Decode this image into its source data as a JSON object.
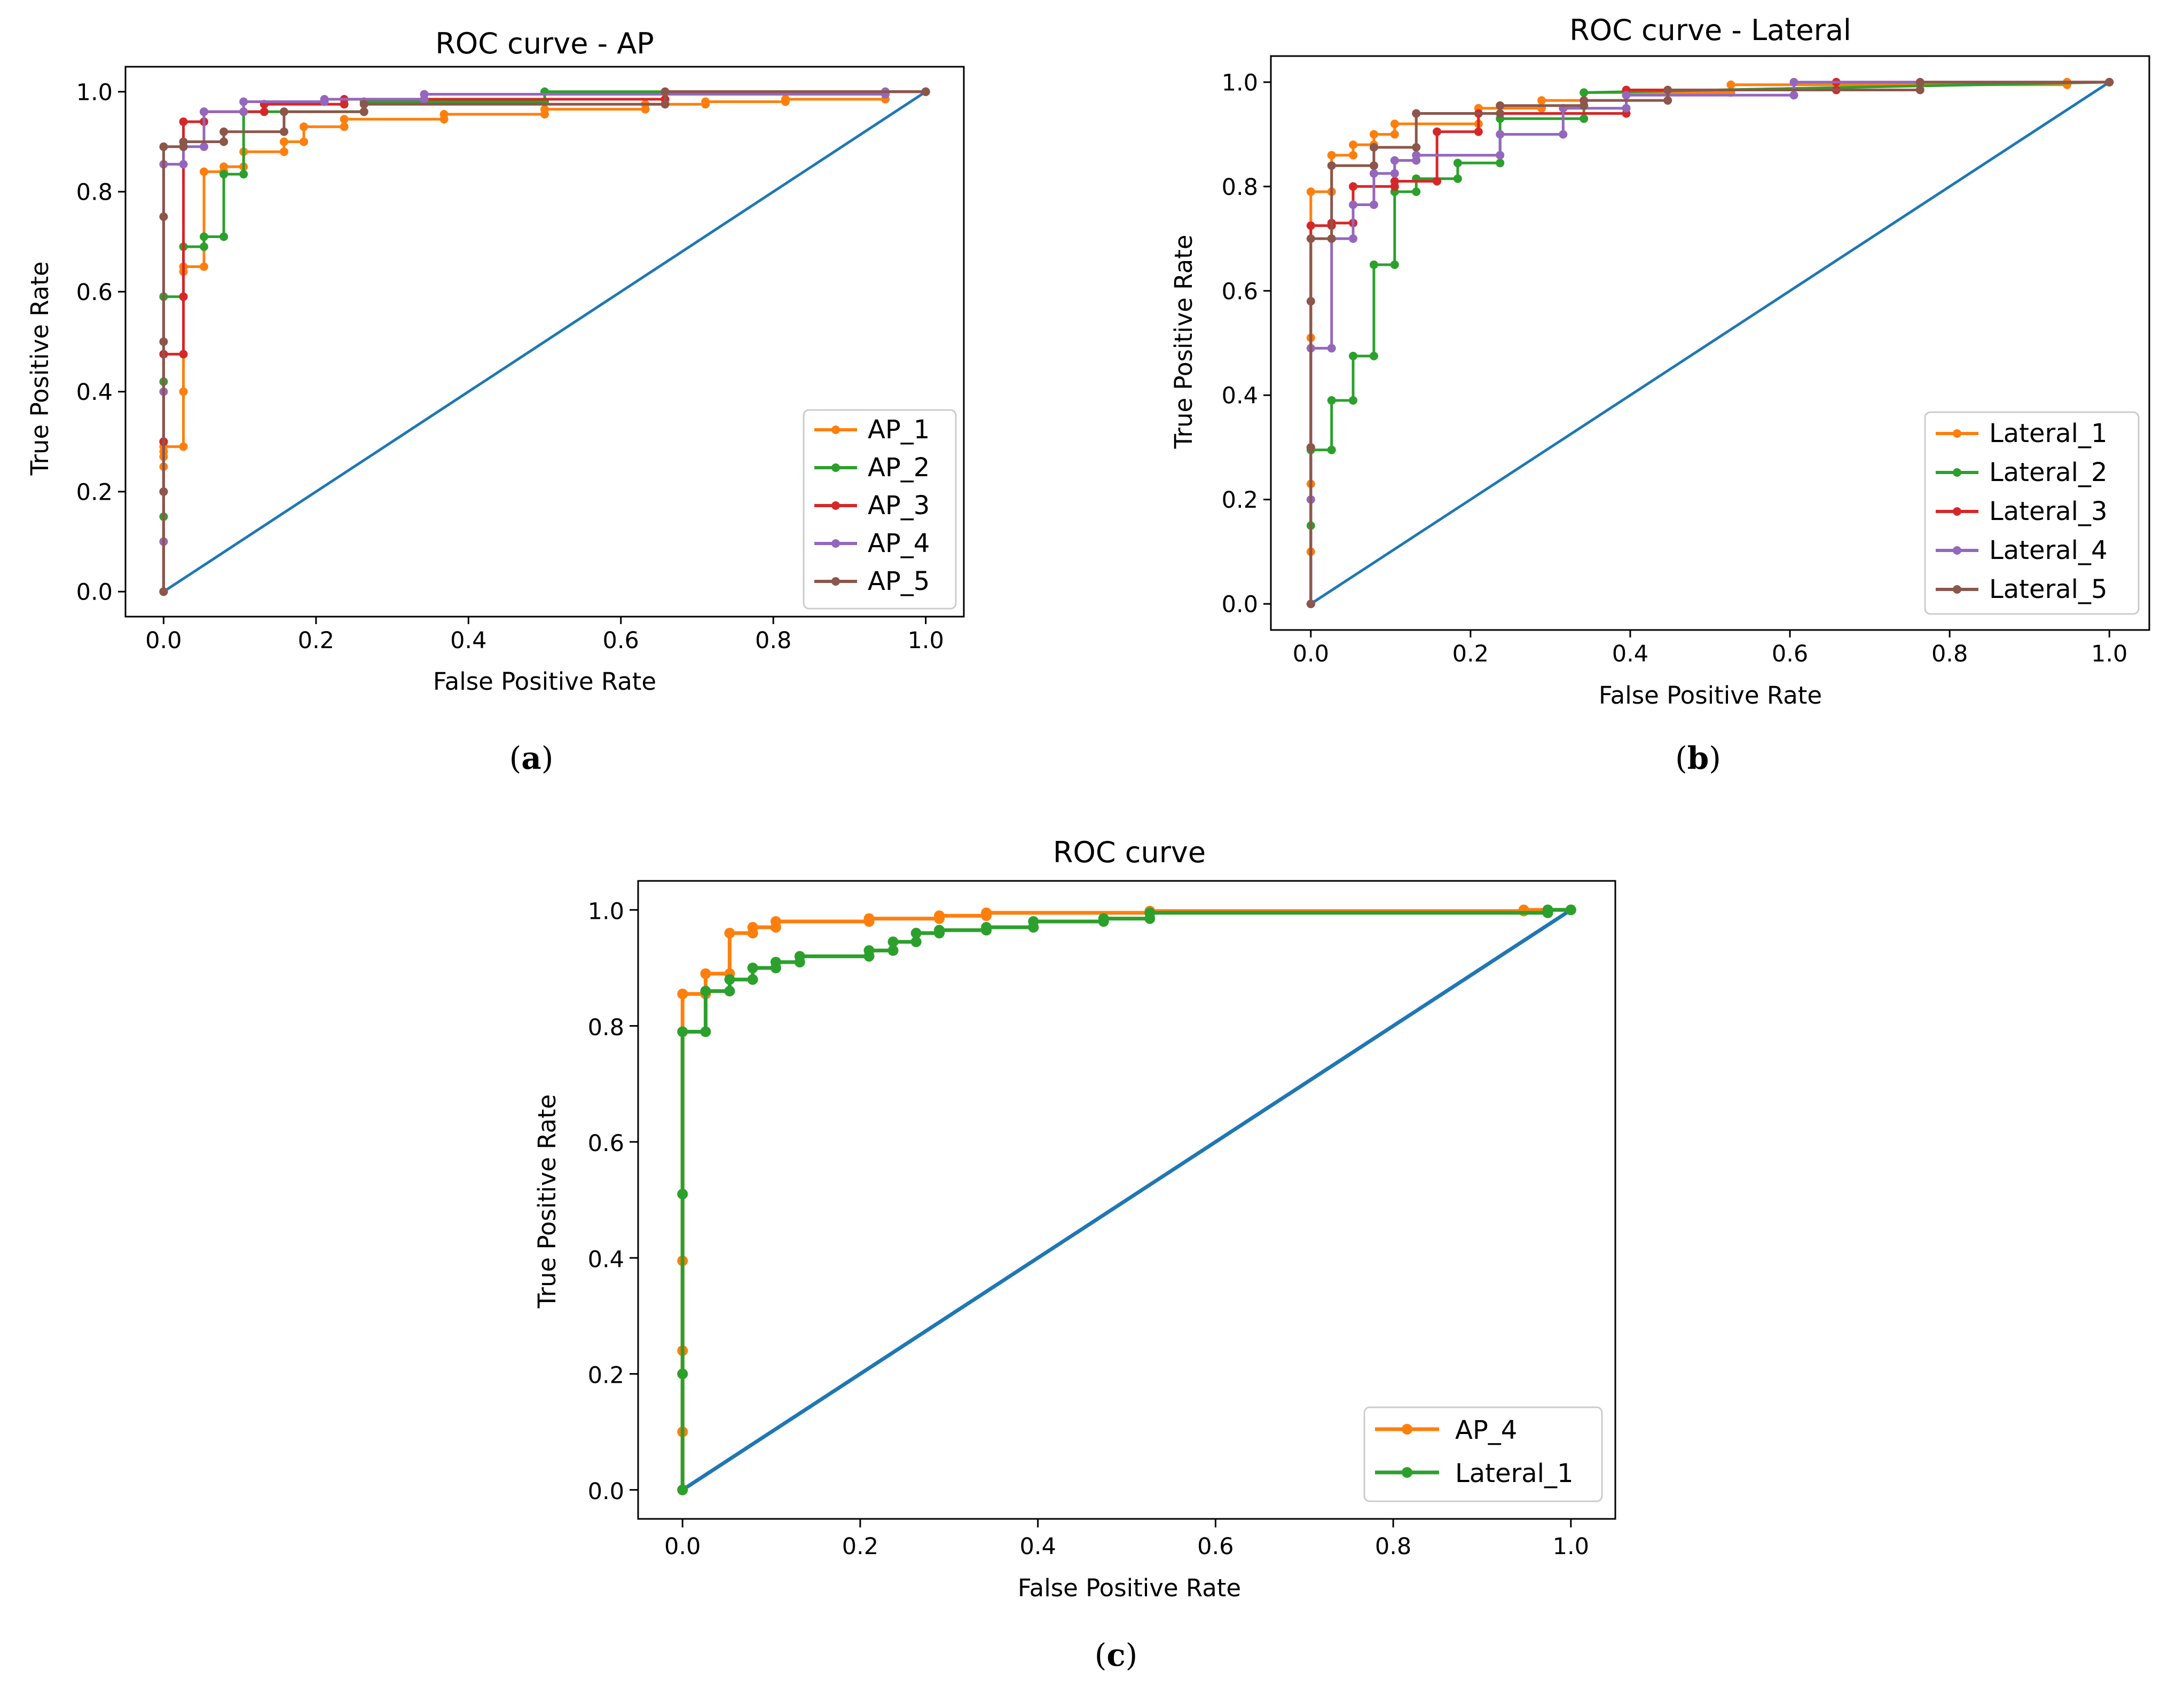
{
  "chart_data": [
    {
      "type": "line",
      "title": "ROC curve - AP",
      "xlabel": "False Positive Rate",
      "ylabel": "True Positive Rate",
      "xlim": [
        -0.05,
        1.05
      ],
      "ylim": [
        -0.05,
        1.05
      ],
      "xticks": [
        0.0,
        0.2,
        0.4,
        0.6,
        0.8,
        1.0
      ],
      "yticks": [
        0.0,
        0.2,
        0.4,
        0.6,
        0.8,
        1.0
      ],
      "tick_labels": [
        "0.0",
        "0.2",
        "0.4",
        "0.6",
        "0.8",
        "1.0"
      ],
      "caption": "a",
      "legend": "bottom-right",
      "diagonal": {
        "color": "#1f77b4",
        "x": [
          0,
          1
        ],
        "y": [
          0,
          1
        ]
      },
      "series": [
        {
          "name": "AP_1",
          "color": "#ff7f0e",
          "x": [
            0,
            0,
            0,
            0,
            0,
            0,
            0,
            0,
            0.026,
            0.026,
            0.026,
            0.026,
            0.053,
            0.053,
            0.079,
            0.079,
            0.105,
            0.105,
            0.158,
            0.158,
            0.184,
            0.184,
            0.237,
            0.237,
            0.368,
            0.368,
            0.5,
            0.5,
            0.632,
            0.632,
            0.711,
            0.711,
            0.816,
            0.816,
            0.947,
            0.947,
            1.0
          ],
          "y": [
            0,
            0.1,
            0.2,
            0.25,
            0.27,
            0.28,
            0.3,
            0.29,
            0.29,
            0.4,
            0.64,
            0.65,
            0.65,
            0.84,
            0.84,
            0.85,
            0.85,
            0.88,
            0.88,
            0.9,
            0.9,
            0.93,
            0.93,
            0.945,
            0.945,
            0.955,
            0.955,
            0.965,
            0.965,
            0.975,
            0.975,
            0.98,
            0.98,
            0.985,
            0.985,
            1.0,
            1.0
          ]
        },
        {
          "name": "AP_2",
          "color": "#2ca02c",
          "x": [
            0,
            0,
            0,
            0,
            0,
            0,
            0.026,
            0.026,
            0.053,
            0.053,
            0.079,
            0.079,
            0.105,
            0.105,
            0.263,
            0.263,
            0.5,
            0.5,
            1.0
          ],
          "y": [
            0,
            0.15,
            0.3,
            0.42,
            0.59,
            0.59,
            0.59,
            0.69,
            0.69,
            0.71,
            0.71,
            0.835,
            0.835,
            0.96,
            0.96,
            0.98,
            0.98,
            1.0,
            1.0
          ]
        },
        {
          "name": "AP_3",
          "color": "#d62728",
          "x": [
            0,
            0,
            0,
            0,
            0.026,
            0.026,
            0.026,
            0.053,
            0.053,
            0.132,
            0.132,
            0.237,
            0.237,
            0.658,
            0.658,
            1.0
          ],
          "y": [
            0,
            0.3,
            0.475,
            0.475,
            0.475,
            0.59,
            0.94,
            0.94,
            0.96,
            0.96,
            0.975,
            0.975,
            0.985,
            0.985,
            1.0,
            1.0
          ]
        },
        {
          "name": "AP_4",
          "color": "#9467bd",
          "x": [
            0,
            0,
            0,
            0,
            0.026,
            0.026,
            0.053,
            0.053,
            0.105,
            0.105,
            0.211,
            0.211,
            0.342,
            0.342,
            0.947,
            0.947,
            1.0
          ],
          "y": [
            0,
            0.1,
            0.4,
            0.855,
            0.855,
            0.89,
            0.89,
            0.96,
            0.96,
            0.98,
            0.98,
            0.985,
            0.985,
            0.995,
            0.995,
            1.0,
            1.0
          ]
        },
        {
          "name": "AP_5",
          "color": "#8c564b",
          "x": [
            0,
            0,
            0,
            0,
            0,
            0.026,
            0.026,
            0.079,
            0.079,
            0.158,
            0.158,
            0.263,
            0.263,
            0.658,
            0.658,
            1.0
          ],
          "y": [
            0,
            0.2,
            0.5,
            0.75,
            0.89,
            0.89,
            0.9,
            0.9,
            0.92,
            0.92,
            0.96,
            0.96,
            0.975,
            0.975,
            1.0,
            1.0
          ]
        }
      ]
    },
    {
      "type": "line",
      "title": "ROC curve - Lateral",
      "xlabel": "False Positive Rate",
      "ylabel": "True Positive Rate",
      "xlim": [
        -0.05,
        1.05
      ],
      "ylim": [
        -0.05,
        1.05
      ],
      "xticks": [
        0.0,
        0.2,
        0.4,
        0.6,
        0.8,
        1.0
      ],
      "yticks": [
        0.0,
        0.2,
        0.4,
        0.6,
        0.8,
        1.0
      ],
      "tick_labels": [
        "0.0",
        "0.2",
        "0.4",
        "0.6",
        "0.8",
        "1.0"
      ],
      "caption": "b",
      "legend": "bottom-right",
      "diagonal": {
        "color": "#1f77b4",
        "x": [
          0,
          1
        ],
        "y": [
          0,
          1
        ]
      },
      "series": [
        {
          "name": "Lateral_1",
          "color": "#ff7f0e",
          "x": [
            0,
            0,
            0,
            0,
            0,
            0.026,
            0.026,
            0.053,
            0.053,
            0.079,
            0.079,
            0.105,
            0.105,
            0.21,
            0.21,
            0.289,
            0.289,
            0.342,
            0.342,
            0.526,
            0.526,
            0.947,
            0.947,
            1.0
          ],
          "y": [
            0,
            0.1,
            0.23,
            0.51,
            0.79,
            0.79,
            0.86,
            0.86,
            0.88,
            0.88,
            0.9,
            0.9,
            0.92,
            0.92,
            0.95,
            0.95,
            0.965,
            0.965,
            0.98,
            0.98,
            0.995,
            0.995,
            1.0,
            1.0
          ]
        },
        {
          "name": "Lateral_2",
          "color": "#2ca02c",
          "x": [
            0,
            0,
            0,
            0.026,
            0.026,
            0.053,
            0.053,
            0.079,
            0.079,
            0.105,
            0.105,
            0.132,
            0.132,
            0.184,
            0.184,
            0.237,
            0.237,
            0.342,
            0.342,
            1.0
          ],
          "y": [
            0,
            0.15,
            0.295,
            0.295,
            0.39,
            0.39,
            0.475,
            0.475,
            0.65,
            0.65,
            0.79,
            0.79,
            0.815,
            0.815,
            0.845,
            0.845,
            0.93,
            0.93,
            0.98,
            1.0
          ]
        },
        {
          "name": "Lateral_3",
          "color": "#d62728",
          "x": [
            0,
            0,
            0,
            0.026,
            0.026,
            0.053,
            0.053,
            0.105,
            0.105,
            0.158,
            0.158,
            0.21,
            0.21,
            0.395,
            0.395,
            0.658,
            0.658,
            1.0
          ],
          "y": [
            0,
            0.3,
            0.725,
            0.725,
            0.73,
            0.73,
            0.8,
            0.8,
            0.81,
            0.81,
            0.905,
            0.905,
            0.94,
            0.94,
            0.985,
            0.985,
            1.0,
            1.0
          ]
        },
        {
          "name": "Lateral_4",
          "color": "#9467bd",
          "x": [
            0,
            0,
            0,
            0.026,
            0.026,
            0.053,
            0.053,
            0.079,
            0.079,
            0.105,
            0.105,
            0.132,
            0.132,
            0.237,
            0.237,
            0.316,
            0.316,
            0.395,
            0.395,
            0.605,
            0.605,
            1.0
          ],
          "y": [
            0,
            0.2,
            0.49,
            0.49,
            0.7,
            0.7,
            0.765,
            0.765,
            0.825,
            0.825,
            0.85,
            0.85,
            0.86,
            0.86,
            0.9,
            0.9,
            0.95,
            0.95,
            0.975,
            0.975,
            1.0,
            1.0
          ]
        },
        {
          "name": "Lateral_5",
          "color": "#8c564b",
          "x": [
            0,
            0,
            0,
            0,
            0.026,
            0.026,
            0.079,
            0.079,
            0.132,
            0.132,
            0.237,
            0.237,
            0.342,
            0.342,
            0.447,
            0.447,
            0.763,
            0.763,
            1.0
          ],
          "y": [
            0,
            0.3,
            0.58,
            0.7,
            0.7,
            0.84,
            0.84,
            0.875,
            0.875,
            0.94,
            0.94,
            0.955,
            0.955,
            0.965,
            0.965,
            0.985,
            0.985,
            1.0,
            1.0
          ]
        }
      ]
    },
    {
      "type": "line",
      "title": "ROC curve",
      "xlabel": "False Positive Rate",
      "ylabel": "True Positive Rate",
      "xlim": [
        -0.05,
        1.05
      ],
      "ylim": [
        -0.05,
        1.05
      ],
      "xticks": [
        0.0,
        0.2,
        0.4,
        0.6,
        0.8,
        1.0
      ],
      "yticks": [
        0.0,
        0.2,
        0.4,
        0.6,
        0.8,
        1.0
      ],
      "tick_labels": [
        "0.0",
        "0.2",
        "0.4",
        "0.6",
        "0.8",
        "1.0"
      ],
      "caption": "c",
      "legend": "bottom-right",
      "diagonal": {
        "color": "#1f77b4",
        "x": [
          0,
          1
        ],
        "y": [
          0,
          1
        ]
      },
      "series": [
        {
          "name": "AP_4",
          "color": "#ff7f0e",
          "x": [
            0,
            0,
            0,
            0,
            0,
            0.026,
            0.026,
            0.053,
            0.053,
            0.079,
            0.079,
            0.105,
            0.105,
            0.21,
            0.21,
            0.289,
            0.289,
            0.342,
            0.342,
            0.526,
            0.526,
            0.947,
            0.947,
            1.0
          ],
          "y": [
            0,
            0.1,
            0.24,
            0.395,
            0.855,
            0.855,
            0.89,
            0.89,
            0.96,
            0.96,
            0.97,
            0.97,
            0.98,
            0.98,
            0.985,
            0.985,
            0.99,
            0.99,
            0.995,
            0.995,
            0.998,
            0.998,
            1.0,
            1.0
          ]
        },
        {
          "name": "Lateral_1",
          "color": "#2ca02c",
          "x": [
            0,
            0,
            0,
            0,
            0.026,
            0.026,
            0.053,
            0.053,
            0.079,
            0.079,
            0.105,
            0.105,
            0.132,
            0.132,
            0.21,
            0.21,
            0.237,
            0.237,
            0.263,
            0.263,
            0.289,
            0.289,
            0.342,
            0.342,
            0.395,
            0.395,
            0.474,
            0.474,
            0.526,
            0.526,
            0.974,
            0.974,
            1.0
          ],
          "y": [
            0,
            0.2,
            0.51,
            0.79,
            0.79,
            0.86,
            0.86,
            0.88,
            0.88,
            0.9,
            0.9,
            0.91,
            0.91,
            0.92,
            0.92,
            0.93,
            0.93,
            0.945,
            0.945,
            0.96,
            0.96,
            0.965,
            0.965,
            0.97,
            0.97,
            0.98,
            0.98,
            0.985,
            0.985,
            0.995,
            0.995,
            1.0,
            1.0
          ]
        }
      ]
    }
  ]
}
